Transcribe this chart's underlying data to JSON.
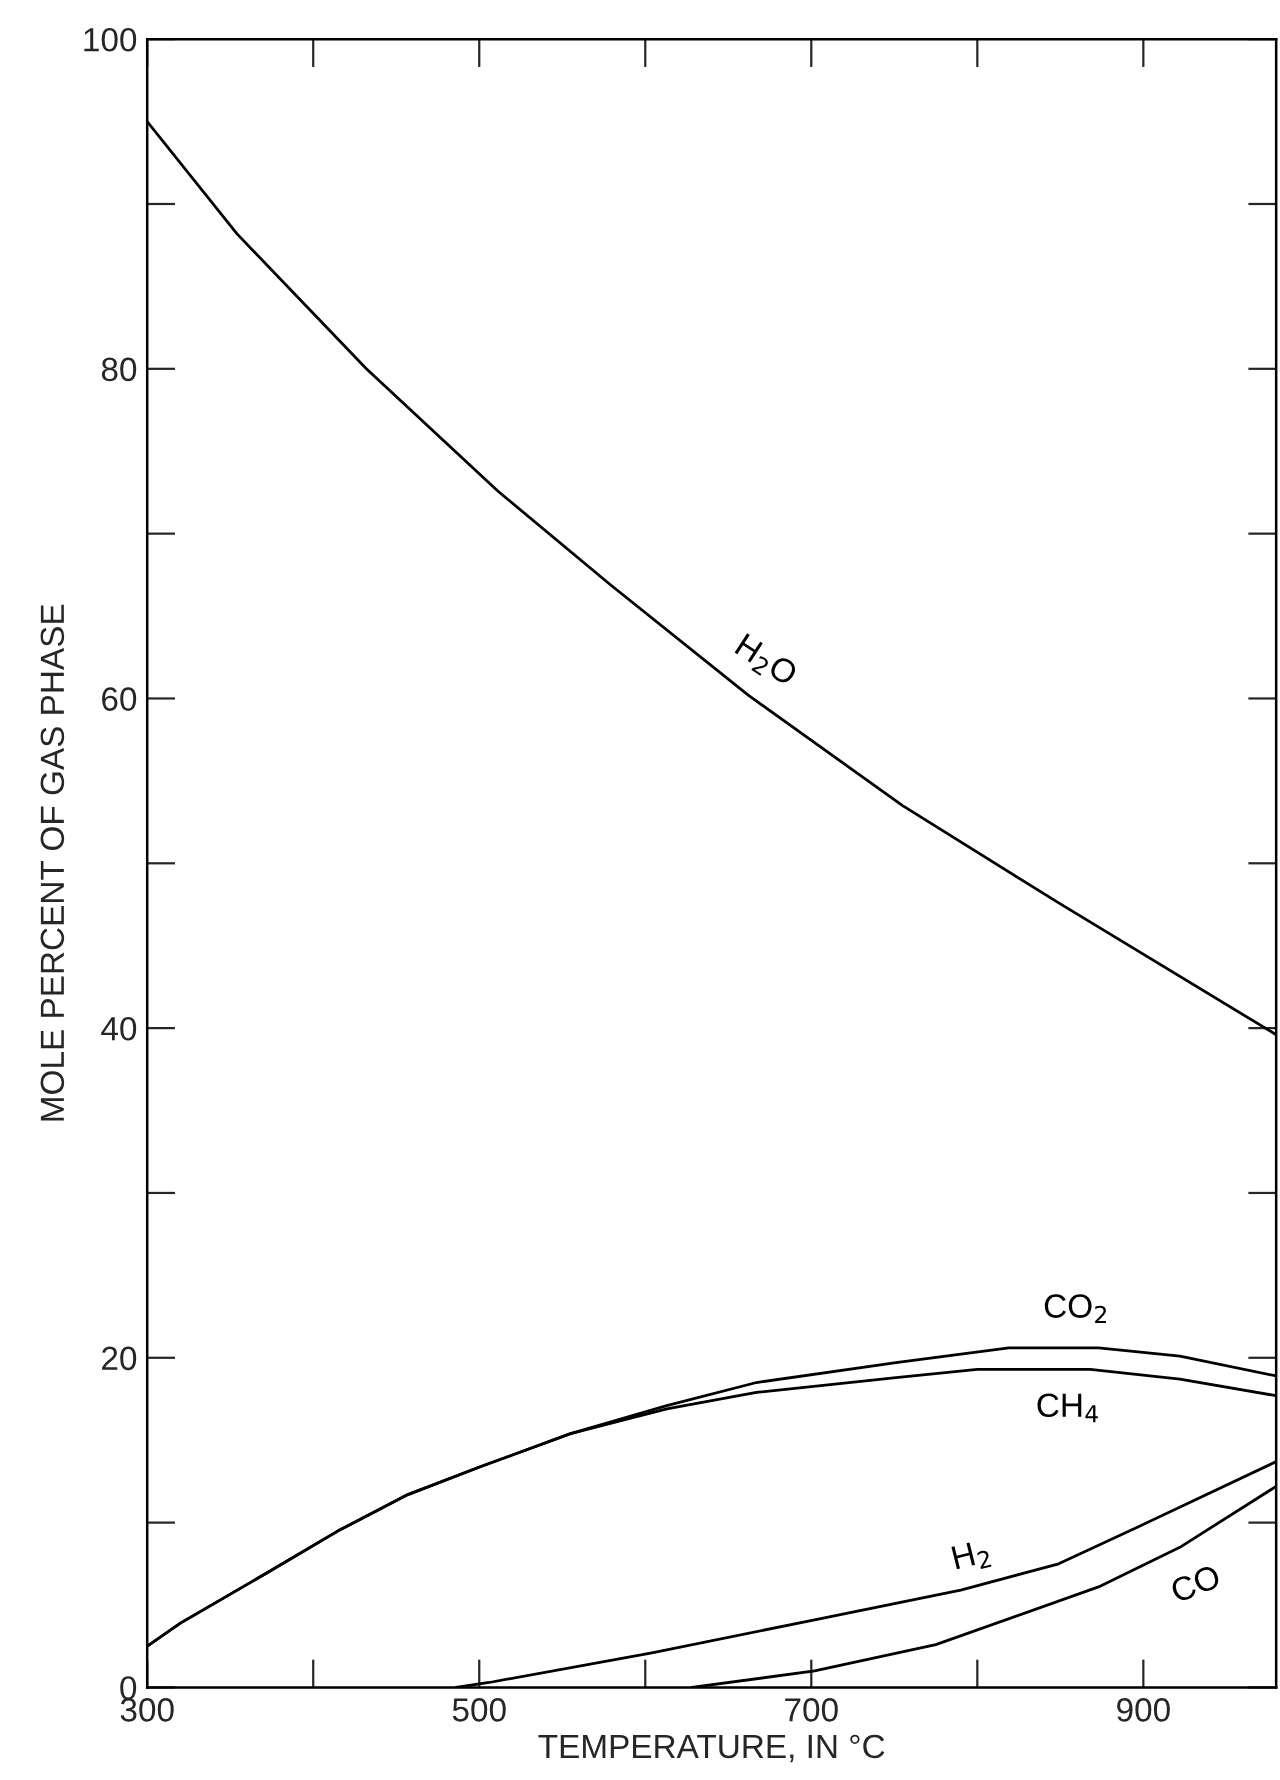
{
  "chart_data": {
    "type": "line",
    "xlabel": "TEMPERATURE, IN °C",
    "ylabel": "MOLE PERCENT OF GAS PHASE",
    "xlim": [
      300,
      980
    ],
    "ylim": [
      0,
      100
    ],
    "xticks": [
      300,
      {
        "value": 400,
        "label": null
      },
      500,
      {
        "value": 600,
        "label": null
      },
      700,
      {
        "value": 800,
        "label": null
      },
      900
    ],
    "yticks": [
      0,
      {
        "value": 10,
        "label": null
      },
      20,
      {
        "value": 30,
        "label": null
      },
      40,
      {
        "value": 50,
        "label": null
      },
      60,
      {
        "value": 70,
        "label": null
      },
      80,
      {
        "value": 90,
        "label": null
      },
      100
    ],
    "grid": false,
    "marker": "none",
    "line_style": "solid",
    "series": [
      {
        "name": "H$_{2}$O",
        "color": "#000000",
        "x": [
          300,
          354,
          432,
          511,
          579,
          662,
          755,
          849,
          980
        ],
        "values": [
          95.0,
          88.2,
          80.0,
          72.6,
          66.9,
          60.2,
          53.5,
          47.6,
          39.6
        ]
      },
      {
        "name": "CO$_{2}$",
        "color": "#000000",
        "x": [
          300,
          320,
          373,
          415,
          457,
          501,
          555,
          613,
          667,
          751,
          819,
          873,
          922,
          980
        ],
        "values": [
          2.5,
          3.9,
          7.0,
          9.5,
          11.7,
          13.4,
          15.4,
          17.1,
          18.5,
          19.7,
          20.6,
          20.6,
          20.1,
          18.9
        ]
      },
      {
        "name": "CH$_{4}$",
        "color": "#000000",
        "x": [
          300,
          320,
          373,
          415,
          457,
          501,
          555,
          613,
          667,
          751,
          800,
          868,
          922,
          980
        ],
        "values": [
          2.5,
          3.9,
          7.0,
          9.5,
          11.7,
          13.4,
          15.4,
          16.9,
          17.9,
          18.8,
          19.3,
          19.3,
          18.7,
          17.7
        ]
      },
      {
        "name": "H$_{2}$",
        "color": "#000000",
        "x": [
          486,
          506,
          604,
          702,
          790,
          849,
          898,
          980
        ],
        "values": [
          0,
          0.3,
          2.1,
          4.1,
          5.9,
          7.5,
          9.8,
          13.7
        ]
      },
      {
        "name": "CO",
        "color": "#000000",
        "x": [
          628,
          702,
          775,
          873,
          922,
          980
        ],
        "values": [
          0,
          1.0,
          2.6,
          6.1,
          8.5,
          12.2
        ]
      }
    ]
  }
}
